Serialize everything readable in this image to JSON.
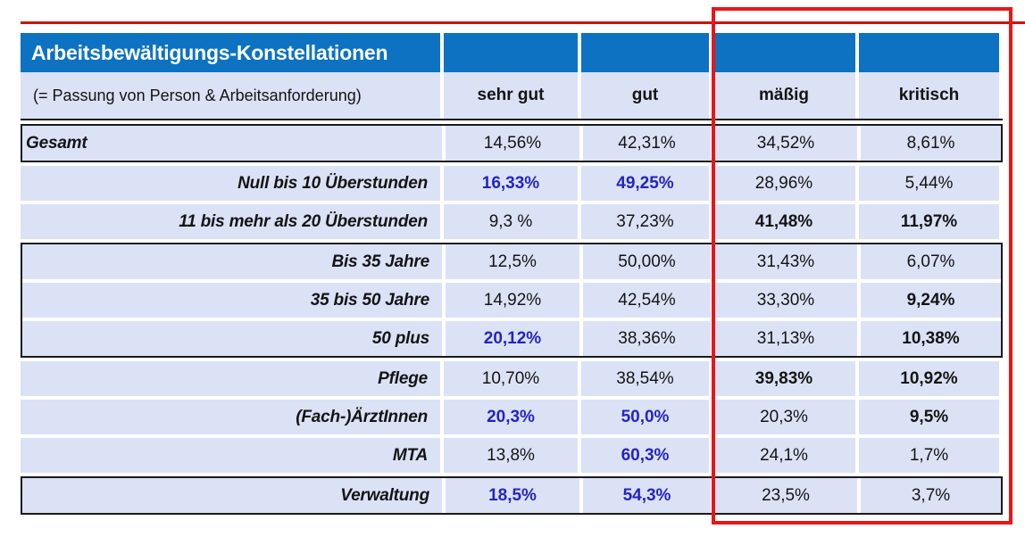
{
  "colors": {
    "header_blue": "#0c72c1",
    "row_background": "#dbe2f6",
    "highlight_red": "#ea1515",
    "top_line_red": "#cf1111",
    "emphasis_blue": "#2424c2"
  },
  "table": {
    "title": "Arbeitsbewältigungs-Konstellationen",
    "subtitle": "(= Passung von Person & Arbeitsanforderung)",
    "columns": [
      "sehr gut",
      "gut",
      "mäßig",
      "kritisch"
    ],
    "rows": [
      {
        "label": "Gesamt",
        "values": [
          "14,56%",
          "42,31%",
          "34,52%",
          "8,61%"
        ],
        "styles": [
          "normal",
          "normal",
          "normal",
          "normal"
        ]
      },
      {
        "label": "Null bis 10 Überstunden",
        "values": [
          "16,33%",
          "49,25%",
          "28,96%",
          "5,44%"
        ],
        "styles": [
          "blue",
          "blue",
          "normal",
          "normal"
        ]
      },
      {
        "label": "11 bis mehr als 20 Überstunden",
        "values": [
          "9,3 %",
          "37,23%",
          "41,48%",
          "11,97%"
        ],
        "styles": [
          "normal",
          "normal",
          "bold",
          "bold"
        ]
      },
      {
        "label": "Bis 35 Jahre",
        "values": [
          "12,5%",
          "50,00%",
          "31,43%",
          "6,07%"
        ],
        "styles": [
          "normal",
          "normal",
          "normal",
          "normal"
        ]
      },
      {
        "label": "35 bis 50 Jahre",
        "values": [
          "14,92%",
          "42,54%",
          "33,30%",
          "9,24%"
        ],
        "styles": [
          "normal",
          "normal",
          "normal",
          "bold"
        ]
      },
      {
        "label": "50 plus",
        "values": [
          "20,12%",
          "38,36%",
          "31,13%",
          "10,38%"
        ],
        "styles": [
          "blue",
          "normal",
          "normal",
          "bold"
        ]
      },
      {
        "label": "Pflege",
        "values": [
          "10,70%",
          "38,54%",
          "39,83%",
          "10,92%"
        ],
        "styles": [
          "normal",
          "normal",
          "bold",
          "bold"
        ]
      },
      {
        "label": "(Fach-)ÄrztInnen",
        "values": [
          "20,3%",
          "50,0%",
          "20,3%",
          "9,5%"
        ],
        "styles": [
          "blue",
          "blue",
          "normal",
          "bold"
        ]
      },
      {
        "label": "MTA",
        "values": [
          "13,8%",
          "60,3%",
          "24,1%",
          "1,7%"
        ],
        "styles": [
          "normal",
          "blue",
          "normal",
          "normal"
        ]
      },
      {
        "label": "Verwaltung",
        "values": [
          "18,5%",
          "54,3%",
          "23,5%",
          "3,7%"
        ],
        "styles": [
          "blue",
          "blue",
          "normal",
          "normal"
        ]
      }
    ],
    "highlighted_columns": [
      "mäßig",
      "kritisch"
    ]
  },
  "chart_data": {
    "type": "table",
    "title": "Arbeitsbewältigungs-Konstellationen (= Passung von Person & Arbeitsanforderung)",
    "categories": [
      "sehr gut",
      "gut",
      "mäßig",
      "kritisch"
    ],
    "series": [
      {
        "name": "Gesamt",
        "values": [
          14.56,
          42.31,
          34.52,
          8.61
        ]
      },
      {
        "name": "Null bis 10 Überstunden",
        "values": [
          16.33,
          49.25,
          28.96,
          5.44
        ]
      },
      {
        "name": "11 bis mehr als 20 Überstunden",
        "values": [
          9.3,
          37.23,
          41.48,
          11.97
        ]
      },
      {
        "name": "Bis 35 Jahre",
        "values": [
          12.5,
          50.0,
          31.43,
          6.07
        ]
      },
      {
        "name": "35 bis 50 Jahre",
        "values": [
          14.92,
          42.54,
          33.3,
          9.24
        ]
      },
      {
        "name": "50 plus",
        "values": [
          20.12,
          38.36,
          31.13,
          10.38
        ]
      },
      {
        "name": "Pflege",
        "values": [
          10.7,
          38.54,
          39.83,
          10.92
        ]
      },
      {
        "name": "(Fach-)ÄrztInnen",
        "values": [
          20.3,
          50.0,
          20.3,
          9.5
        ]
      },
      {
        "name": "MTA",
        "values": [
          13.8,
          60.3,
          24.1,
          1.7
        ]
      },
      {
        "name": "Verwaltung",
        "values": [
          18.5,
          54.3,
          23.5,
          3.7
        ]
      }
    ],
    "unit": "%",
    "annotation": "red rectangle highlights the mäßig and kritisch columns"
  }
}
